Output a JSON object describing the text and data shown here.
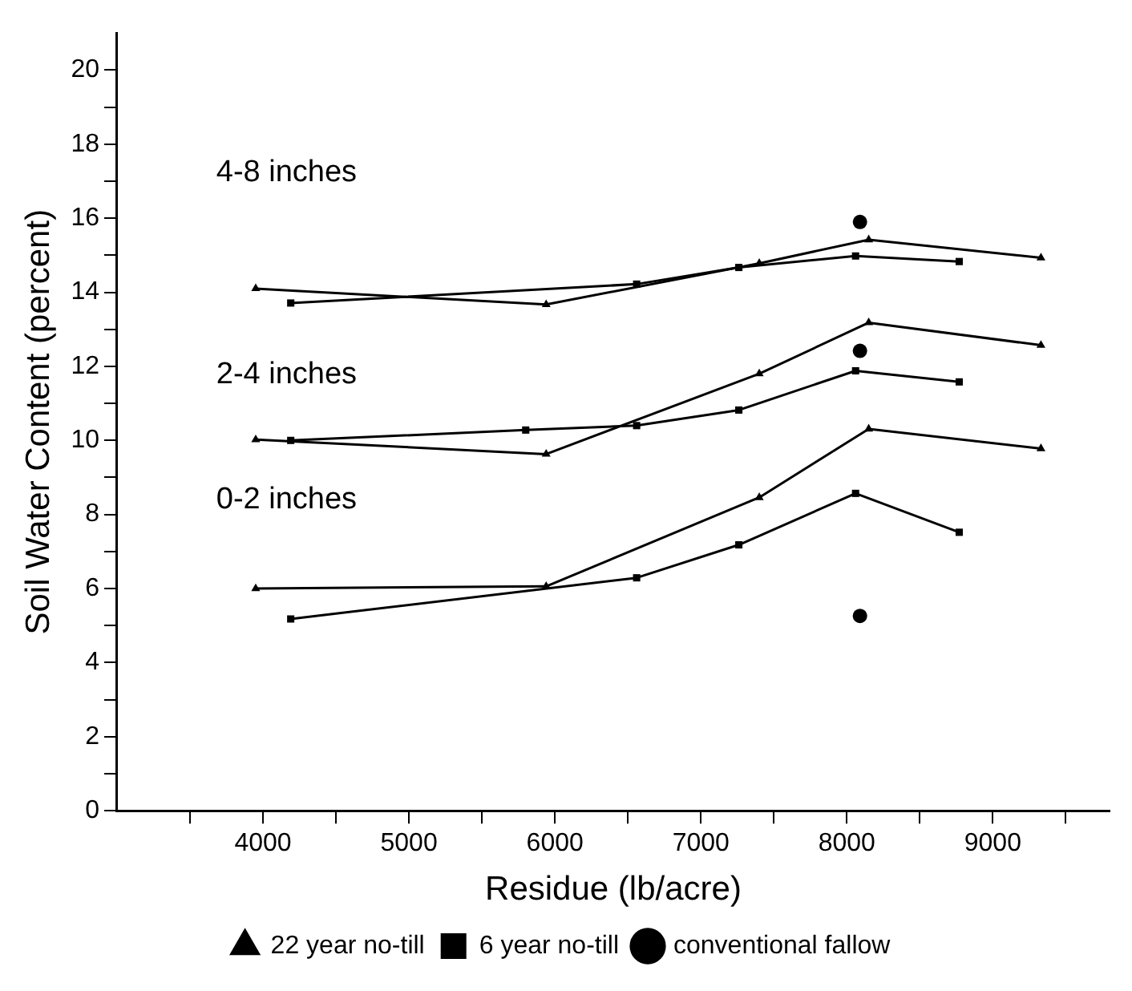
{
  "chart_data": {
    "type": "line",
    "xlabel": "Residue (lb/acre)",
    "ylabel": "Soil Water Content (percent)",
    "xlim": [
      3000,
      9800
    ],
    "xticks": [
      {
        "value": 3500,
        "label": null
      },
      4000,
      {
        "value": 4500,
        "label": null
      },
      5000,
      {
        "value": 5500,
        "label": null
      },
      6000,
      {
        "value": 6500,
        "label": null
      },
      7000,
      {
        "value": 7500,
        "label": null
      },
      8000,
      {
        "value": 8500,
        "label": null
      },
      9000,
      {
        "value": 9500,
        "label": null
      }
    ],
    "ylim": [
      0,
      21
    ],
    "yticks": [
      0,
      {
        "value": 1,
        "label": null
      },
      2,
      {
        "value": 3,
        "label": null
      },
      4,
      {
        "value": 5,
        "label": null
      },
      6,
      {
        "value": 7,
        "label": null
      },
      8,
      {
        "value": 9,
        "label": null
      },
      10,
      {
        "value": 11,
        "label": null
      },
      12,
      {
        "value": 13,
        "label": null
      },
      14,
      {
        "value": 15,
        "label": null
      },
      16,
      {
        "value": 17,
        "label": null
      },
      18,
      {
        "value": 19,
        "label": null
      },
      20
    ],
    "series": [
      {
        "name": "22 year no-till",
        "color": "#000000",
        "marker": "triangle",
        "x": [
          3950,
          5940,
          7400,
          8150,
          9330
        ],
        "values": [
          6.0,
          6.06,
          8.46,
          10.31,
          9.78
        ]
      },
      {
        "name": "6 year no-till",
        "color": "#000000",
        "marker": "square",
        "x": [
          4190,
          6560,
          7260,
          8060,
          8770
        ],
        "values": [
          5.18,
          6.29,
          7.18,
          8.57,
          7.52
        ]
      },
      {
        "name": "conventional fallow",
        "type": "scatter",
        "color": "#000000",
        "marker": "circle",
        "x": [
          8090,
          8090,
          8090
        ],
        "values": [
          5.26,
          12.42,
          15.9
        ]
      },
      {
        "color": "#000000",
        "marker": "triangle",
        "x": [
          3950,
          5940,
          7400,
          8150,
          9330
        ],
        "values": [
          10.02,
          9.63,
          11.8,
          13.18,
          12.57
        ]
      },
      {
        "color": "#000000",
        "marker": "square",
        "x": [
          4190,
          5800,
          6560,
          7260,
          8060,
          8770
        ],
        "values": [
          10.0,
          10.28,
          10.4,
          10.82,
          11.88,
          11.58
        ]
      },
      {
        "color": "#000000",
        "marker": "triangle",
        "x": [
          3950,
          5940,
          7400,
          8150,
          9330
        ],
        "values": [
          14.1,
          13.67,
          14.78,
          15.42,
          14.93
        ]
      },
      {
        "color": "#000000",
        "marker": "square",
        "x": [
          4190,
          6560,
          7260,
          8060,
          8770
        ],
        "values": [
          13.71,
          14.22,
          14.67,
          14.98,
          14.83
        ]
      }
    ],
    "annotations": [
      "4-8 inches",
      "2-4 inches",
      "0-2 inches"
    ],
    "legend": "bottom",
    "grid": false,
    "line_style": "solid"
  }
}
